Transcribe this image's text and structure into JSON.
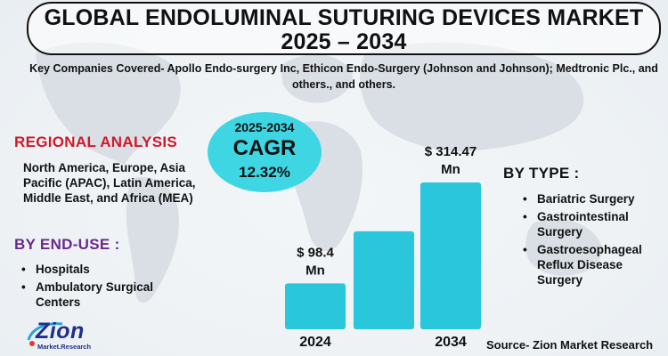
{
  "title": {
    "line1": "GLOBAL ENDOLUMINAL SUTURING DEVICES MARKET",
    "line2": "2025 – 2034"
  },
  "key_companies": "Key Companies Covered- Apollo Endo-surgery Inc, Ethicon Endo-Surgery (Johnson and Johnson); Medtronic Plc., and others., and others.",
  "cagr": {
    "period": "2025-2034",
    "label": "CAGR",
    "value": "12.32%"
  },
  "regional": {
    "heading": "REGIONAL ANALYSIS",
    "text": "North America, Europe, Asia Pacific (APAC), Latin America, Middle East, and Africa (MEA)"
  },
  "end_use": {
    "heading": "BY END-USE :",
    "items": [
      "Hospitals",
      "Ambulatory Surgical Centers"
    ]
  },
  "by_type": {
    "heading": "BY TYPE :",
    "items": [
      "Bariatric Surgery",
      "Gastrointestinal Surgery",
      "Gastroesophageal Reflux Disease Surgery"
    ]
  },
  "chart_data": {
    "type": "bar",
    "categories": [
      "2024",
      "",
      "2034"
    ],
    "values": [
      98.4,
      210,
      314.47
    ],
    "data_labels": [
      "$ 98.4 Mn",
      "",
      "$ 314.47 Mn"
    ],
    "units": "USD Million",
    "ylim": [
      0,
      314.47
    ],
    "bar_color": "#29c6dc"
  },
  "logo": {
    "name": "Zion",
    "sub": "Market.Research"
  },
  "source": "Source- Zion Market Research",
  "colors": {
    "accent_cyan": "#29c6dc",
    "regional_red": "#d0182a",
    "enduse_purple": "#6a2a8c",
    "logo_blue": "#1f2f8a"
  }
}
